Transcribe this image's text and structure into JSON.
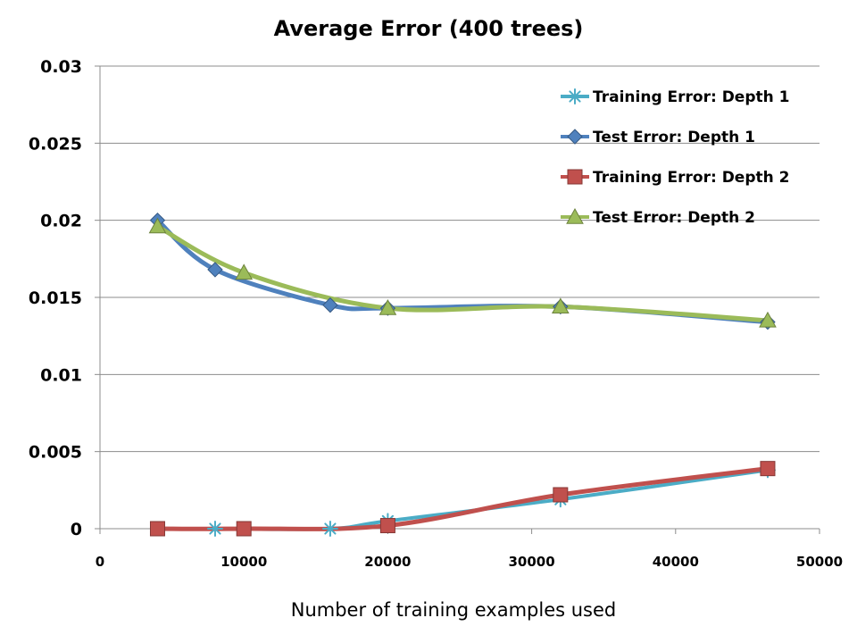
{
  "chart_data": {
    "type": "line",
    "title": "Average Error (400 trees)",
    "xlabel": "Number of training examples used",
    "ylabel": "",
    "xlim": [
      0,
      50000
    ],
    "ylim": [
      0,
      0.03
    ],
    "x_ticks": [
      "0",
      "10000",
      "20000",
      "30000",
      "40000",
      "50000"
    ],
    "y_ticks": [
      "0",
      "0.005",
      "0.01",
      "0.015",
      "0.02",
      "0.025",
      "0.03"
    ],
    "grid": "horizontal",
    "legend_position": "top-right",
    "series": [
      {
        "name": "Training Error: Depth 1",
        "color": "#4bacc6",
        "marker": "asterisk",
        "points": [
          [
            8000,
            0.0
          ],
          [
            16000,
            0.0
          ],
          [
            20000,
            0.0005
          ],
          [
            32000,
            0.0019
          ],
          [
            46400,
            0.0038
          ]
        ]
      },
      {
        "name": "Test Error: Depth 1",
        "color": "#4f81bd",
        "marker": "diamond",
        "points": [
          [
            4000,
            0.02
          ],
          [
            8000,
            0.0168
          ],
          [
            16000,
            0.0145
          ],
          [
            20000,
            0.0143
          ],
          [
            32000,
            0.0144
          ],
          [
            46400,
            0.0134
          ]
        ]
      },
      {
        "name": "Training Error: Depth 2",
        "color": "#c0504d",
        "marker": "square",
        "points": [
          [
            4000,
            0.0
          ],
          [
            10000,
            0.0
          ],
          [
            20000,
            0.0002
          ],
          [
            32000,
            0.0022
          ],
          [
            46400,
            0.0039
          ]
        ]
      },
      {
        "name": "Test Error: Depth 2",
        "color": "#9bbb59",
        "marker": "triangle",
        "points": [
          [
            4000,
            0.0196
          ],
          [
            10000,
            0.0166
          ],
          [
            20000,
            0.0143
          ],
          [
            32000,
            0.0144
          ],
          [
            46400,
            0.0135
          ]
        ]
      }
    ]
  }
}
